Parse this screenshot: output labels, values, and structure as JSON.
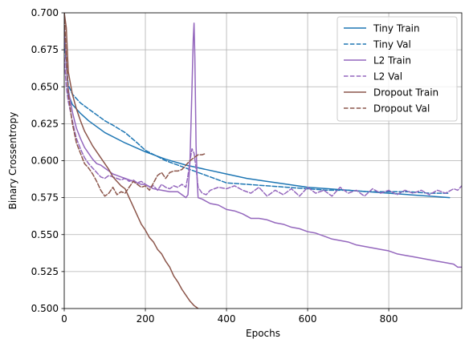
{
  "chart_data": {
    "type": "line",
    "title": "",
    "xlabel": "Epochs",
    "ylabel": "Binary Crossentropy",
    "xlim": [
      0,
      980
    ],
    "ylim": [
      0.5,
      0.7
    ],
    "xticks": [
      0,
      200,
      400,
      600,
      800
    ],
    "yticks": [
      0.5,
      0.525,
      0.55,
      0.575,
      0.6,
      0.625,
      0.65,
      0.675,
      0.7
    ],
    "grid": true,
    "legend_position": "top-right",
    "series": [
      {
        "name": "Tiny Train",
        "color": "#1f77b4",
        "dash": "solid",
        "x": [
          0,
          10,
          20,
          40,
          60,
          80,
          100,
          150,
          200,
          250,
          300,
          350,
          400,
          450,
          500,
          550,
          600,
          650,
          700,
          750,
          800,
          850,
          900,
          950
        ],
        "y": [
          0.69,
          0.645,
          0.638,
          0.632,
          0.627,
          0.623,
          0.619,
          0.612,
          0.606,
          0.601,
          0.597,
          0.594,
          0.591,
          0.588,
          0.586,
          0.584,
          0.582,
          0.581,
          0.58,
          0.579,
          0.578,
          0.577,
          0.576,
          0.575
        ]
      },
      {
        "name": "Tiny Val",
        "color": "#1f77b4",
        "dash": "dashed",
        "x": [
          0,
          10,
          20,
          30,
          40,
          60,
          80,
          100,
          120,
          150,
          180,
          200,
          250,
          300,
          350,
          400,
          450,
          500,
          550,
          600,
          650,
          700,
          750,
          800,
          850,
          900,
          950
        ],
        "y": [
          0.68,
          0.651,
          0.645,
          0.642,
          0.639,
          0.635,
          0.631,
          0.627,
          0.624,
          0.619,
          0.612,
          0.607,
          0.6,
          0.595,
          0.59,
          0.585,
          0.584,
          0.583,
          0.582,
          0.581,
          0.58,
          0.58,
          0.579,
          0.579,
          0.579,
          0.578,
          0.578
        ]
      },
      {
        "name": "L2 Train",
        "color": "#9467bd",
        "dash": "solid",
        "x": [
          0,
          5,
          10,
          20,
          30,
          40,
          50,
          60,
          70,
          80,
          90,
          100,
          110,
          120,
          130,
          140,
          150,
          160,
          170,
          180,
          190,
          200,
          220,
          240,
          260,
          280,
          300,
          305,
          310,
          315,
          318,
          320,
          322,
          325,
          328,
          330,
          340,
          360,
          380,
          400,
          420,
          440,
          460,
          480,
          500,
          520,
          540,
          560,
          580,
          600,
          620,
          640,
          660,
          680,
          700,
          720,
          740,
          760,
          780,
          800,
          820,
          840,
          860,
          880,
          900,
          920,
          940,
          960,
          970,
          980
        ],
        "y": [
          0.69,
          0.665,
          0.648,
          0.633,
          0.622,
          0.615,
          0.609,
          0.605,
          0.601,
          0.598,
          0.597,
          0.595,
          0.593,
          0.591,
          0.59,
          0.589,
          0.588,
          0.587,
          0.586,
          0.585,
          0.584,
          0.584,
          0.581,
          0.58,
          0.579,
          0.579,
          0.575,
          0.577,
          0.6,
          0.65,
          0.682,
          0.693,
          0.67,
          0.61,
          0.585,
          0.575,
          0.574,
          0.571,
          0.57,
          0.567,
          0.566,
          0.564,
          0.561,
          0.561,
          0.56,
          0.558,
          0.557,
          0.555,
          0.554,
          0.552,
          0.551,
          0.549,
          0.547,
          0.546,
          0.545,
          0.543,
          0.542,
          0.541,
          0.54,
          0.539,
          0.537,
          0.536,
          0.535,
          0.534,
          0.533,
          0.532,
          0.531,
          0.53,
          0.528,
          0.528
        ]
      },
      {
        "name": "L2 Val",
        "color": "#9467bd",
        "dash": "dashed",
        "x": [
          0,
          5,
          10,
          20,
          30,
          40,
          50,
          60,
          70,
          80,
          90,
          100,
          110,
          120,
          130,
          140,
          150,
          160,
          170,
          180,
          190,
          200,
          210,
          220,
          230,
          240,
          250,
          260,
          270,
          280,
          290,
          300,
          305,
          310,
          315,
          320,
          325,
          330,
          340,
          350,
          360,
          380,
          400,
          420,
          440,
          460,
          480,
          500,
          520,
          540,
          560,
          580,
          600,
          620,
          640,
          660,
          680,
          700,
          720,
          740,
          760,
          780,
          800,
          820,
          840,
          860,
          880,
          900,
          920,
          940,
          960,
          970,
          980
        ],
        "y": [
          0.67,
          0.65,
          0.64,
          0.627,
          0.615,
          0.608,
          0.602,
          0.598,
          0.595,
          0.592,
          0.589,
          0.588,
          0.59,
          0.589,
          0.588,
          0.587,
          0.588,
          0.586,
          0.587,
          0.585,
          0.586,
          0.584,
          0.582,
          0.583,
          0.58,
          0.584,
          0.582,
          0.581,
          0.583,
          0.582,
          0.584,
          0.582,
          0.59,
          0.6,
          0.608,
          0.605,
          0.595,
          0.582,
          0.578,
          0.577,
          0.58,
          0.582,
          0.581,
          0.583,
          0.58,
          0.578,
          0.582,
          0.576,
          0.58,
          0.577,
          0.581,
          0.576,
          0.582,
          0.578,
          0.58,
          0.576,
          0.582,
          0.578,
          0.58,
          0.576,
          0.581,
          0.578,
          0.58,
          0.577,
          0.58,
          0.578,
          0.58,
          0.577,
          0.58,
          0.578,
          0.581,
          0.58,
          0.583
        ]
      },
      {
        "name": "Dropout Train",
        "color": "#8c564b",
        "dash": "solid",
        "x": [
          0,
          5,
          10,
          20,
          30,
          40,
          50,
          60,
          70,
          80,
          90,
          100,
          110,
          120,
          130,
          140,
          150,
          160,
          170,
          180,
          190,
          200,
          210,
          220,
          230,
          240,
          250,
          260,
          270,
          280,
          290,
          300,
          310,
          320,
          330
        ],
        "y": [
          0.7,
          0.69,
          0.66,
          0.645,
          0.635,
          0.627,
          0.62,
          0.615,
          0.61,
          0.606,
          0.602,
          0.598,
          0.594,
          0.589,
          0.586,
          0.583,
          0.581,
          0.575,
          0.569,
          0.563,
          0.557,
          0.553,
          0.548,
          0.545,
          0.54,
          0.537,
          0.532,
          0.528,
          0.522,
          0.518,
          0.513,
          0.509,
          0.505,
          0.502,
          0.5
        ]
      },
      {
        "name": "Dropout Val",
        "color": "#8c564b",
        "dash": "dashed",
        "x": [
          0,
          5,
          10,
          20,
          30,
          40,
          50,
          60,
          70,
          80,
          90,
          100,
          110,
          120,
          130,
          140,
          150,
          160,
          170,
          180,
          190,
          200,
          210,
          220,
          230,
          240,
          250,
          260,
          270,
          280,
          290,
          300,
          310,
          320,
          330,
          340,
          350
        ],
        "y": [
          0.7,
          0.67,
          0.645,
          0.625,
          0.612,
          0.605,
          0.598,
          0.595,
          0.591,
          0.586,
          0.58,
          0.576,
          0.578,
          0.582,
          0.577,
          0.579,
          0.578,
          0.582,
          0.586,
          0.584,
          0.582,
          0.583,
          0.58,
          0.585,
          0.59,
          0.592,
          0.588,
          0.592,
          0.593,
          0.593,
          0.594,
          0.597,
          0.6,
          0.602,
          0.604,
          0.604,
          0.605
        ]
      }
    ]
  }
}
